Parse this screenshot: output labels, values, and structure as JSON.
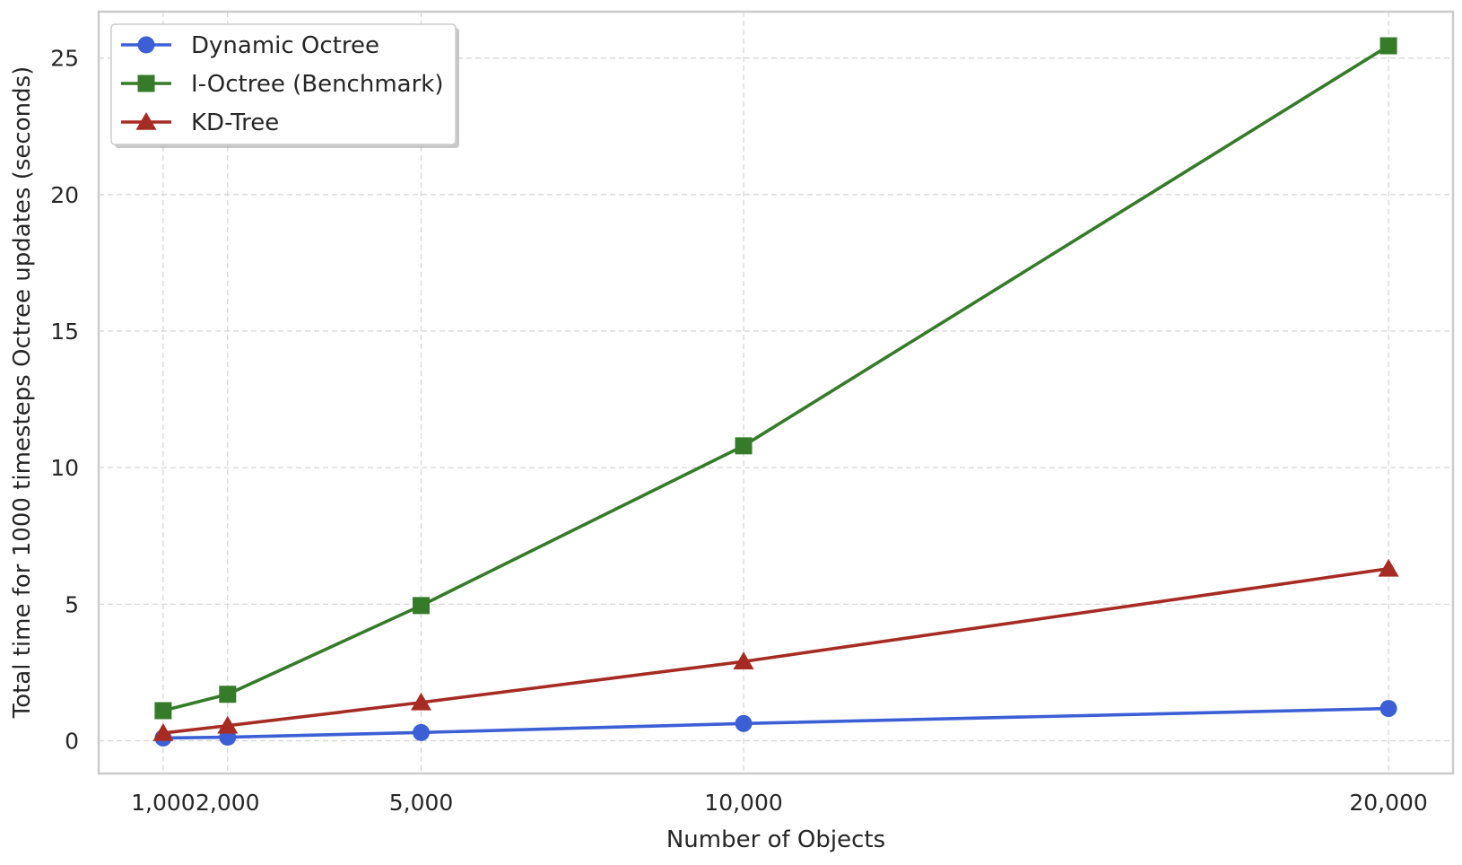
{
  "chart_data": {
    "type": "line",
    "title": "",
    "xlabel": "Number of Objects",
    "ylabel": "Total time for 1000 timesteps Octree updates (seconds)",
    "x": [
      1000,
      2000,
      5000,
      10000,
      20000
    ],
    "x_tick_labels": [
      "1,000",
      "2,000",
      "5,000",
      "10,000",
      "20,000"
    ],
    "y_ticks": [
      0,
      5,
      10,
      15,
      20,
      25
    ],
    "y_tick_labels": [
      "0",
      "5",
      "10",
      "15",
      "20",
      "25"
    ],
    "xlim": [
      0,
      21000
    ],
    "ylim": [
      -1.2,
      26.7
    ],
    "grid": true,
    "legend_position": "top-left",
    "series": [
      {
        "name": "Dynamic Octree",
        "marker": "circle",
        "color": "#3d5fd6",
        "values": [
          0.1,
          0.13,
          0.3,
          0.63,
          1.18
        ]
      },
      {
        "name": "I-Octree (Benchmark)",
        "marker": "square",
        "color": "#367b2a",
        "values": [
          1.1,
          1.7,
          4.95,
          10.8,
          25.45
        ]
      },
      {
        "name": "KD-Tree",
        "marker": "triangle",
        "color": "#a62c23",
        "values": [
          0.28,
          0.55,
          1.4,
          2.9,
          6.3
        ]
      }
    ]
  }
}
